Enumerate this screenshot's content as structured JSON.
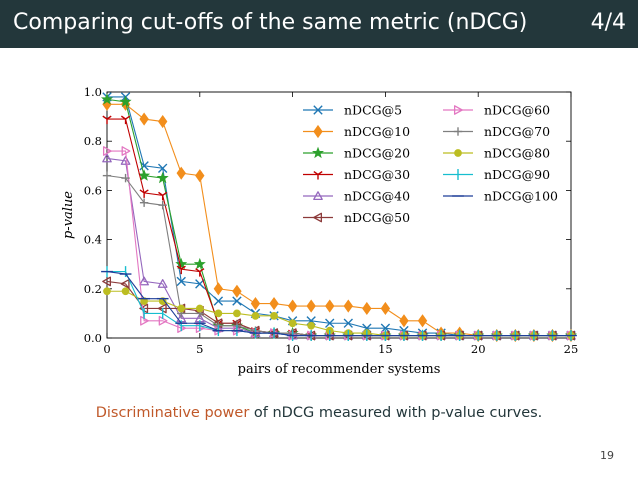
{
  "header": {
    "title": "Comparing cut-offs of the same metric (nDCG)",
    "counter": "4/4"
  },
  "caption": {
    "highlight": "Discriminative power",
    "rest": " of nDCG measured with p-value curves."
  },
  "page_number": "19",
  "chart_data": {
    "type": "line",
    "title": "",
    "xlabel": "pairs of recommender systems",
    "ylabel": "p-value",
    "xlim": [
      0,
      25
    ],
    "ylim": [
      0,
      1
    ],
    "x_ticks": [
      "0",
      "5",
      "10",
      "15",
      "20",
      "25"
    ],
    "y_ticks": [
      "0.0",
      "0.2",
      "0.4",
      "0.6",
      "0.8",
      "1.0"
    ],
    "grid": false,
    "legend_position": "top-right",
    "x": [
      0,
      1,
      2,
      3,
      4,
      5,
      6,
      7,
      8,
      9,
      10,
      11,
      12,
      13,
      14,
      15,
      16,
      17,
      18,
      19,
      20,
      21,
      22,
      23,
      24,
      25
    ],
    "series": [
      {
        "name": "nDCG@5",
        "color": "#1f77b4",
        "marker": "x",
        "values": [
          0.98,
          0.98,
          0.7,
          0.69,
          0.23,
          0.22,
          0.15,
          0.15,
          0.1,
          0.09,
          0.07,
          0.07,
          0.06,
          0.06,
          0.04,
          0.04,
          0.03,
          0.02,
          0.02,
          0.01,
          0.01,
          0.01,
          0.01,
          0.01,
          0.01,
          0.01
        ]
      },
      {
        "name": "nDCG@10",
        "color": "#f28e1c",
        "marker": "diamond",
        "values": [
          0.95,
          0.95,
          0.89,
          0.88,
          0.67,
          0.66,
          0.2,
          0.19,
          0.14,
          0.14,
          0.13,
          0.13,
          0.13,
          0.13,
          0.12,
          0.12,
          0.07,
          0.07,
          0.02,
          0.02,
          0.01,
          0.01,
          0.01,
          0.01,
          0.01,
          0.01
        ]
      },
      {
        "name": "nDCG@20",
        "color": "#2ca02c",
        "marker": "star",
        "values": [
          0.97,
          0.96,
          0.66,
          0.65,
          0.3,
          0.3,
          0.05,
          0.05,
          0.02,
          0.02,
          0.02,
          0.01,
          0.01,
          0.01,
          0.01,
          0.01,
          0.01,
          0.01,
          0.01,
          0.01,
          0.01,
          0.01,
          0.01,
          0.01,
          0.01,
          0.01
        ]
      },
      {
        "name": "nDCG@30",
        "color": "#c00000",
        "marker": "tri-down",
        "values": [
          0.89,
          0.89,
          0.59,
          0.58,
          0.28,
          0.27,
          0.06,
          0.06,
          0.03,
          0.02,
          0.02,
          0.01,
          0.01,
          0.01,
          0.01,
          0.01,
          0.01,
          0.01,
          0.01,
          0.01,
          0.01,
          0.01,
          0.01,
          0.01,
          0.01,
          0.01
        ]
      },
      {
        "name": "nDCG@40",
        "color": "#9467bd",
        "marker": "tri-up",
        "values": [
          0.73,
          0.72,
          0.23,
          0.22,
          0.08,
          0.08,
          0.04,
          0.04,
          0.02,
          0.02,
          0.01,
          0.01,
          0.01,
          0.01,
          0.01,
          0.01,
          0.01,
          0.01,
          0.01,
          0.01,
          0.01,
          0.01,
          0.01,
          0.01,
          0.01,
          0.01
        ]
      },
      {
        "name": "nDCG@50",
        "color": "#8c3a3a",
        "marker": "tri-left",
        "values": [
          0.23,
          0.22,
          0.12,
          0.12,
          0.12,
          0.11,
          0.06,
          0.06,
          0.03,
          0.02,
          0.02,
          0.01,
          0.01,
          0.01,
          0.01,
          0.01,
          0.01,
          0.01,
          0.01,
          0.01,
          0.01,
          0.01,
          0.01,
          0.01,
          0.01,
          0.01
        ]
      },
      {
        "name": "nDCG@60",
        "color": "#e377c2",
        "marker": "tri-right",
        "values": [
          0.76,
          0.76,
          0.07,
          0.07,
          0.04,
          0.04,
          0.03,
          0.03,
          0.02,
          0.02,
          0.01,
          0.01,
          0.01,
          0.01,
          0.01,
          0.01,
          0.01,
          0.01,
          0.01,
          0.01,
          0.01,
          0.01,
          0.01,
          0.01,
          0.01,
          0.01
        ]
      },
      {
        "name": "nDCG@70",
        "color": "#7f7f7f",
        "marker": "plus",
        "values": [
          0.66,
          0.65,
          0.55,
          0.54,
          0.1,
          0.1,
          0.05,
          0.05,
          0.03,
          0.02,
          0.02,
          0.01,
          0.01,
          0.01,
          0.01,
          0.01,
          0.01,
          0.01,
          0.01,
          0.01,
          0.01,
          0.01,
          0.01,
          0.01,
          0.01,
          0.01
        ]
      },
      {
        "name": "nDCG@80",
        "color": "#bcbd22",
        "marker": "circle",
        "values": [
          0.19,
          0.19,
          0.15,
          0.15,
          0.12,
          0.12,
          0.1,
          0.1,
          0.09,
          0.09,
          0.06,
          0.05,
          0.03,
          0.02,
          0.02,
          0.01,
          0.01,
          0.01,
          0.01,
          0.01,
          0.01,
          0.01,
          0.01,
          0.01,
          0.01,
          0.01
        ]
      },
      {
        "name": "nDCG@90",
        "color": "#17becf",
        "marker": "vline",
        "values": [
          0.27,
          0.27,
          0.1,
          0.1,
          0.05,
          0.05,
          0.03,
          0.03,
          0.02,
          0.02,
          0.01,
          0.01,
          0.01,
          0.01,
          0.01,
          0.01,
          0.01,
          0.01,
          0.01,
          0.01,
          0.01,
          0.01,
          0.01,
          0.01,
          0.01,
          0.01
        ]
      },
      {
        "name": "nDCG@100",
        "color": "#1f3f99",
        "marker": "hline",
        "values": [
          0.27,
          0.26,
          0.16,
          0.16,
          0.06,
          0.06,
          0.03,
          0.03,
          0.02,
          0.02,
          0.01,
          0.01,
          0.01,
          0.01,
          0.01,
          0.01,
          0.01,
          0.01,
          0.01,
          0.01,
          0.01,
          0.01,
          0.01,
          0.01,
          0.01,
          0.01
        ]
      }
    ]
  }
}
